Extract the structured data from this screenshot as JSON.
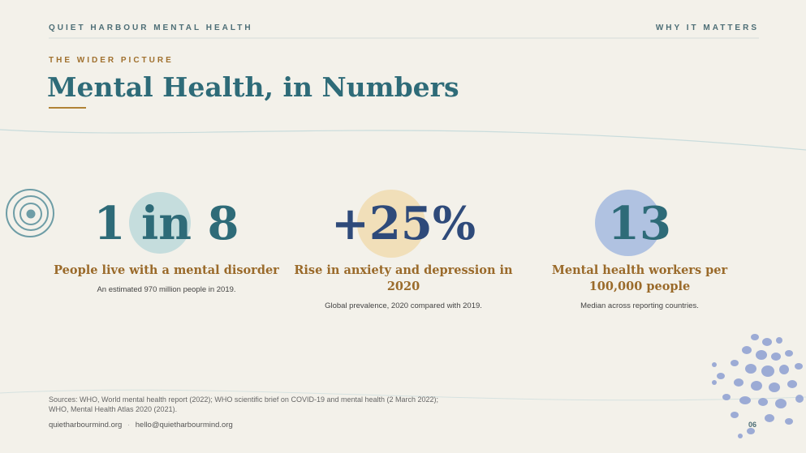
{
  "header": {
    "brand": "QUIET HARBOUR MENTAL HEALTH",
    "section": "WHY IT MATTERS"
  },
  "eyebrow": "THE WIDER PICTURE",
  "title": "Mental Health, in Numbers",
  "stats": [
    {
      "value": "1 in 8",
      "label": "People live with a mental disorder",
      "description": "An estimated 970 million people in 2019."
    },
    {
      "value": "+25%",
      "label": "Rise in anxiety and depression in 2020",
      "description": "Global prevalence, 2020 compared with 2019."
    },
    {
      "value": "13",
      "label": "Mental health workers per 100,000 people",
      "description": "Median across reporting countries."
    }
  ],
  "sources": [
    "Sources: WHO, World mental health report (2022); WHO scientific brief on COVID-19 and mental health (2 March 2022);",
    "WHO, Mental Health Atlas 2020 (2021)."
  ],
  "footer": {
    "website": "quietharbourmind.org",
    "separator": "·",
    "email": "hello@quietharbourmind.org",
    "page": "06"
  }
}
